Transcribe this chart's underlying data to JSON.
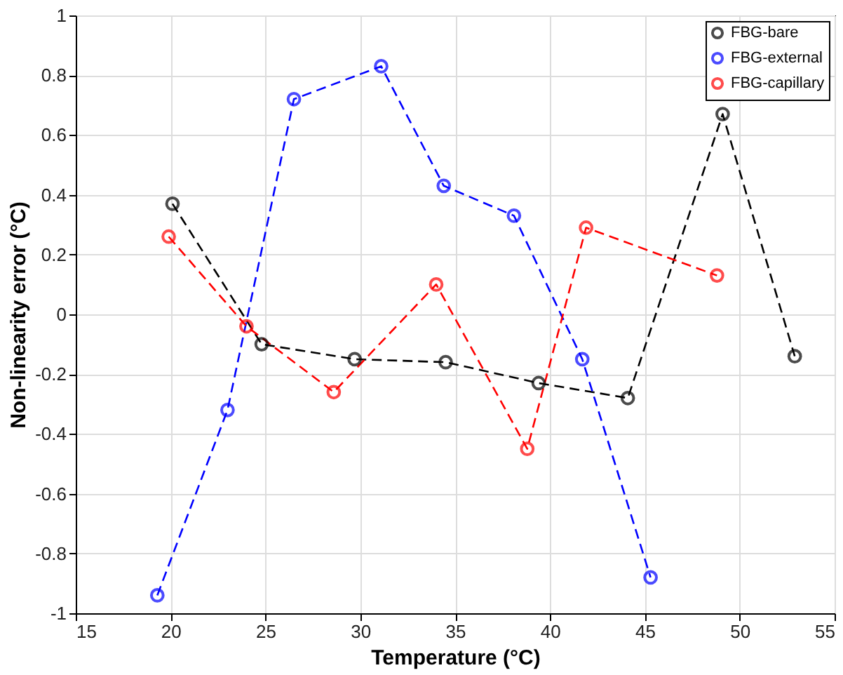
{
  "chart_data": {
    "type": "line",
    "xlabel": "Temperature (°C)",
    "ylabel": "Non-linearity error (°C)",
    "xlim": [
      15,
      55
    ],
    "xticks": [
      15,
      20,
      25,
      30,
      35,
      40,
      45,
      50,
      55
    ],
    "ylim": [
      -1,
      1
    ],
    "yticks": [
      -1,
      -0.8,
      -0.6,
      -0.4,
      -0.2,
      0,
      0.2,
      0.4,
      0.6,
      0.8,
      1
    ],
    "grid": true,
    "legend": "top right",
    "marker": "circle",
    "line_style": "dashed",
    "series": [
      {
        "name": "FBG-bare",
        "color": "#000000",
        "x": [
          20.1,
          24.8,
          29.7,
          34.5,
          39.4,
          44.1,
          49.1,
          52.9
        ],
        "values": [
          0.37,
          -0.1,
          -0.15,
          -0.16,
          -0.23,
          -0.28,
          0.67,
          -0.14
        ]
      },
      {
        "name": "FBG-external",
        "color": "#0000ff",
        "x": [
          19.3,
          23.0,
          26.5,
          31.1,
          34.4,
          38.1,
          41.7,
          45.3
        ],
        "values": [
          -0.94,
          -0.32,
          0.72,
          0.83,
          0.43,
          0.33,
          -0.15,
          -0.88
        ]
      },
      {
        "name": "FBG-capillary",
        "color": "#ff0000",
        "x": [
          19.9,
          24.0,
          28.6,
          34.0,
          38.8,
          41.9,
          48.8
        ],
        "values": [
          0.26,
          -0.04,
          -0.26,
          0.1,
          -0.45,
          0.29,
          0.13
        ]
      }
    ]
  }
}
